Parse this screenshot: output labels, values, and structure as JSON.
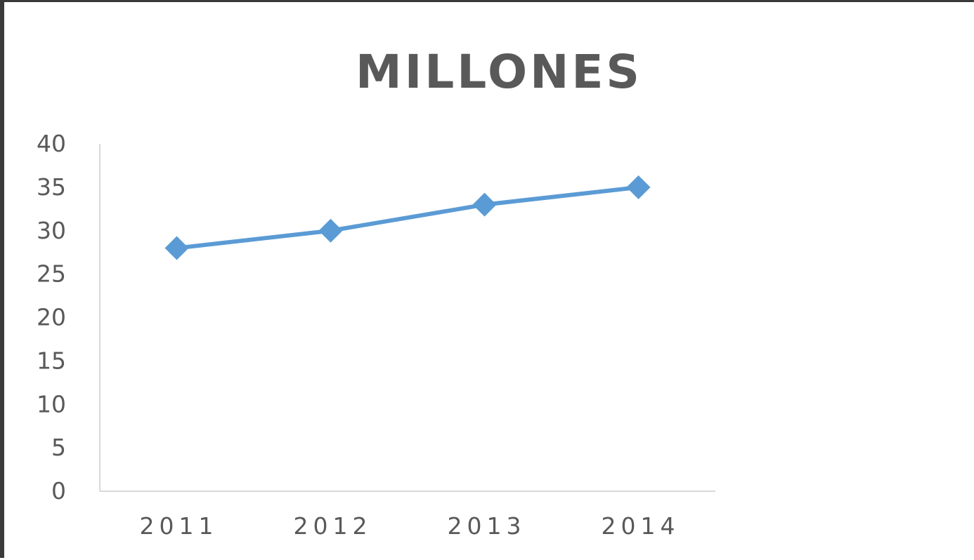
{
  "chart_data": {
    "type": "line",
    "title": "MILLONES",
    "xlabel": "",
    "ylabel": "",
    "categories": [
      "2011",
      "2012",
      "2013",
      "2014"
    ],
    "series": [
      {
        "values": [
          28,
          30,
          33,
          35
        ],
        "color": "#5b9bd5",
        "marker": "diamond"
      }
    ],
    "ylim": [
      0,
      40
    ],
    "yticks": [
      0,
      5,
      10,
      15,
      20,
      25,
      30,
      35,
      40
    ],
    "grid": false,
    "legend": "none"
  }
}
